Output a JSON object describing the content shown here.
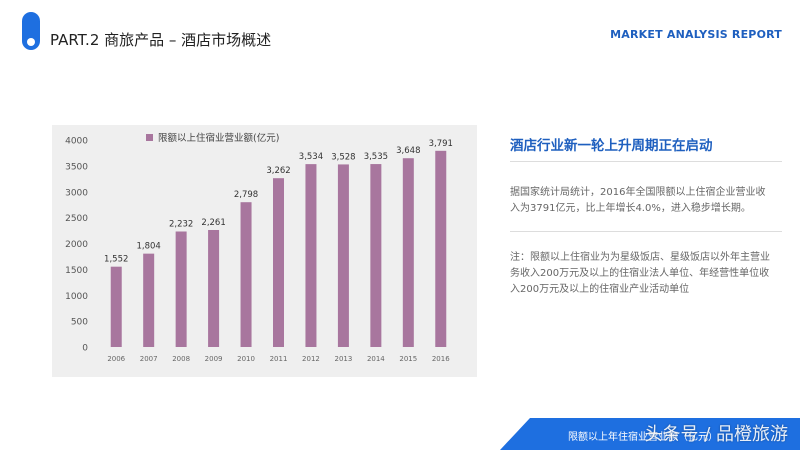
{
  "header": {
    "title": "PART.2 商旅产品 – 酒店市场概述",
    "report_label": "MARKET ANALYSIS REPORT"
  },
  "side": {
    "title": "酒店行业新一轮上升周期正在启动",
    "para1": "据国家统计局统计，2016年全国限额以上住宿企业营业收入为3791亿元，比上年增长4.0%，进入稳步增长期。",
    "para2": "注：限额以上住宿业为为星级饭店、星级饭店以外年主营业务收入200万元及以上的住宿业法人单位、年经营性单位收入200万元及以上的住宿业产业活动单位"
  },
  "footer": {
    "text": "限额以上年住宿业营业额（亿元）",
    "watermark": "头条号 / 品橙旅游"
  },
  "colors": {
    "accent": "#1e6fe0",
    "bar": "#a8769e"
  },
  "chart_data": {
    "type": "bar",
    "categories": [
      "2006",
      "2007",
      "2008",
      "2009",
      "2010",
      "2011",
      "2012",
      "2013",
      "2014",
      "2015",
      "2016"
    ],
    "series": [
      {
        "name": "限额以上住宿业营业额(亿元)",
        "values": [
          1552,
          1804,
          2232,
          2261,
          2798,
          3262,
          3534,
          3528,
          3535,
          3648,
          3791
        ]
      }
    ],
    "value_labels": [
      "1,552",
      "1,804",
      "2,232",
      "2,261",
      "2,798",
      "3,262",
      "3,534",
      "3,528",
      "3,535",
      "3,648",
      "3,791"
    ],
    "y_ticks": [
      0,
      500,
      1000,
      1500,
      2000,
      2500,
      3000,
      3500,
      4000
    ],
    "ylim": [
      0,
      4000
    ],
    "grid": false,
    "legend": "top-left"
  }
}
